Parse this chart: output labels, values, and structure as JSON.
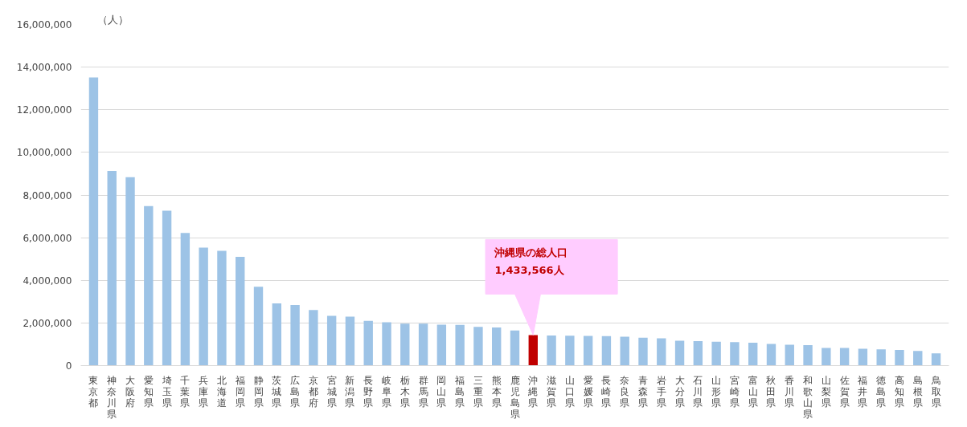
{
  "chart_data": {
    "type": "bar",
    "ylabel": "（人）",
    "categories": [
      "東京都",
      "神奈川県",
      "大阪府",
      "愛知県",
      "埼玉県",
      "千葉県",
      "兵庫県",
      "北海道",
      "福岡県",
      "静岡県",
      "茨城県",
      "広島県",
      "京都府",
      "宮城県",
      "新潟県",
      "長野県",
      "岐阜県",
      "栃木県",
      "群馬県",
      "岡山県",
      "福島県",
      "三重県",
      "熊本県",
      "鹿児島県",
      "沖縄県",
      "滋賀県",
      "山口県",
      "愛媛県",
      "長崎県",
      "奈良県",
      "青森県",
      "岩手県",
      "大分県",
      "石川県",
      "山形県",
      "宮崎県",
      "富山県",
      "秋田県",
      "香川県",
      "和歌山県",
      "山梨県",
      "佐賀県",
      "福井県",
      "徳島県",
      "高知県",
      "島根県",
      "鳥取県"
    ],
    "values": [
      13520000,
      9130000,
      8840000,
      7480000,
      7270000,
      6220000,
      5530000,
      5380000,
      5100000,
      3700000,
      2920000,
      2840000,
      2610000,
      2330000,
      2300000,
      2100000,
      2030000,
      1970000,
      1970000,
      1920000,
      1910000,
      1820000,
      1790000,
      1650000,
      1433566,
      1410000,
      1400000,
      1390000,
      1380000,
      1360000,
      1310000,
      1280000,
      1170000,
      1150000,
      1120000,
      1100000,
      1070000,
      1020000,
      980000,
      960000,
      830000,
      830000,
      790000,
      760000,
      730000,
      690000,
      570000
    ],
    "colors": [
      "#9dc3e6",
      "#9dc3e6",
      "#9dc3e6",
      "#9dc3e6",
      "#9dc3e6",
      "#9dc3e6",
      "#9dc3e6",
      "#9dc3e6",
      "#9dc3e6",
      "#9dc3e6",
      "#9dc3e6",
      "#9dc3e6",
      "#9dc3e6",
      "#9dc3e6",
      "#9dc3e6",
      "#9dc3e6",
      "#9dc3e6",
      "#9dc3e6",
      "#9dc3e6",
      "#9dc3e6",
      "#9dc3e6",
      "#9dc3e6",
      "#9dc3e6",
      "#9dc3e6",
      "#c00000",
      "#9dc3e6",
      "#9dc3e6",
      "#9dc3e6",
      "#9dc3e6",
      "#9dc3e6",
      "#9dc3e6",
      "#9dc3e6",
      "#9dc3e6",
      "#9dc3e6",
      "#9dc3e6",
      "#9dc3e6",
      "#9dc3e6",
      "#9dc3e6",
      "#9dc3e6",
      "#9dc3e6",
      "#9dc3e6",
      "#9dc3e6",
      "#9dc3e6",
      "#9dc3e6",
      "#9dc3e6",
      "#9dc3e6",
      "#9dc3e6"
    ],
    "ylim": [
      0,
      16000000
    ],
    "yticks": [
      {
        "value": 0,
        "label": "0"
      },
      {
        "value": 2000000,
        "label": "2,000,000"
      },
      {
        "value": 4000000,
        "label": "4,000,000"
      },
      {
        "value": 6000000,
        "label": "6,000,000"
      },
      {
        "value": 8000000,
        "label": "8,000,000"
      },
      {
        "value": 10000000,
        "label": "10,000,000"
      },
      {
        "value": 12000000,
        "label": "12,000,000"
      },
      {
        "value": 14000000,
        "label": "14,000,000"
      },
      {
        "value": 16000000,
        "label": "16,000,000"
      }
    ],
    "grid": "y",
    "annotations": [
      "沖縄県の総人口\n1,433,566人"
    ]
  }
}
